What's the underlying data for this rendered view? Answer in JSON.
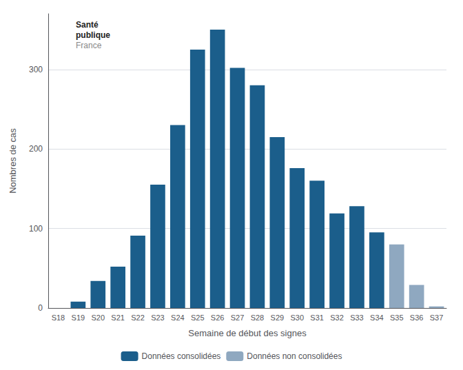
{
  "chart_data": {
    "type": "bar",
    "categories": [
      "S18",
      "S19",
      "S20",
      "S21",
      "S22",
      "S23",
      "S24",
      "S25",
      "S26",
      "S27",
      "S28",
      "S29",
      "S30",
      "S31",
      "S32",
      "S33",
      "S34",
      "S35",
      "S36",
      "S37"
    ],
    "series": [
      {
        "name": "Données consolidées",
        "color": "#1B5E8B",
        "values": [
          0,
          8,
          34,
          52,
          91,
          155,
          230,
          325,
          350,
          302,
          280,
          215,
          176,
          160,
          119,
          128,
          95,
          null,
          null,
          null
        ]
      },
      {
        "name": "Données non consolidées",
        "color": "#8FA8C0",
        "values": [
          null,
          null,
          null,
          null,
          null,
          null,
          null,
          null,
          null,
          null,
          null,
          null,
          null,
          null,
          null,
          null,
          null,
          80,
          29,
          2
        ]
      }
    ],
    "xlabel": "Semaine de début des signes",
    "ylabel": "Nombres de cas",
    "ylim": [
      0,
      370
    ],
    "yticks": [
      0,
      100,
      200,
      300
    ],
    "grid": true,
    "legend": "bottom",
    "annotations": [
      "Santé",
      "publique",
      "France"
    ]
  }
}
